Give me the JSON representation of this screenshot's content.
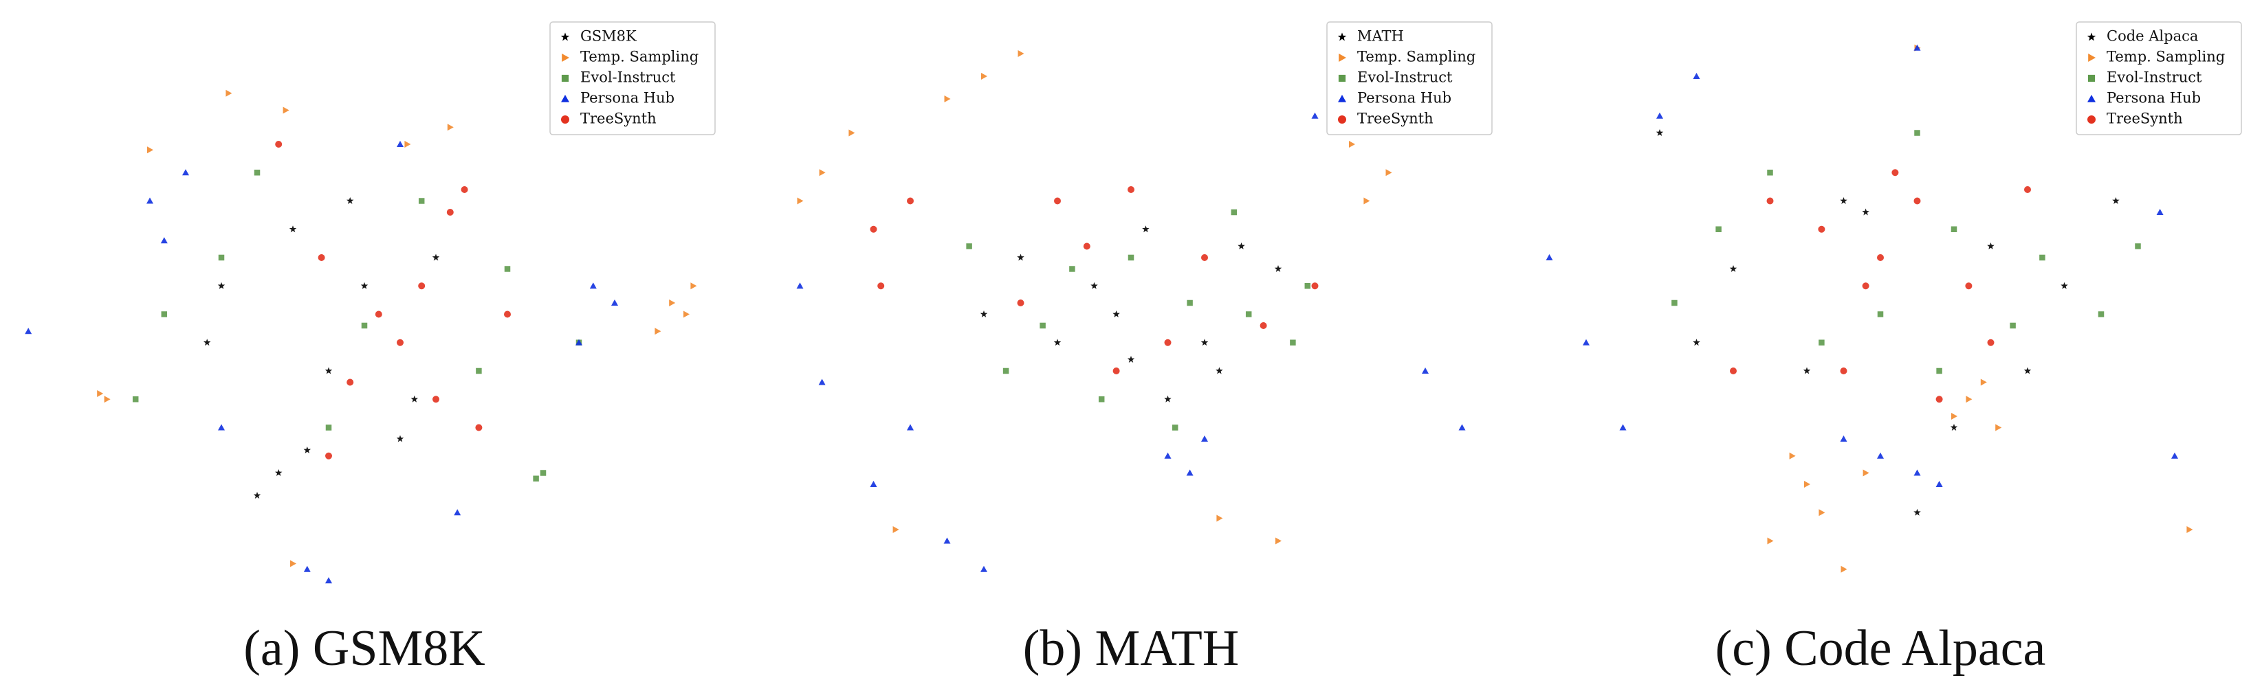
{
  "chart_data": [
    {
      "type": "scatter",
      "title": "(a) GSM8K",
      "xlim": [
        0,
        100
      ],
      "ylim": [
        0,
        100
      ],
      "legend": "upper right",
      "series": [
        {
          "name": "GSM8K",
          "color": "#000000",
          "marker": "star",
          "x": [
            38,
            42,
            45,
            57,
            40,
            50,
            28,
            60,
            35,
            55,
            48,
            30
          ],
          "y": [
            22,
            26,
            40,
            35,
            65,
            55,
            45,
            60,
            18,
            28,
            70,
            55
          ]
        },
        {
          "name": "Temp. Sampling",
          "color": "#f28a2e",
          "marker": "triangle-right",
          "x": [
            93,
            95,
            91,
            96,
            13,
            14,
            39,
            31,
            62,
            40,
            56,
            20
          ],
          "y": [
            52,
            50,
            47,
            55,
            36,
            35,
            86,
            89,
            83,
            6,
            80,
            79
          ]
        },
        {
          "name": "Evol-Instruct",
          "color": "#5e9a4c",
          "marker": "square",
          "x": [
            74,
            75,
            30,
            66,
            50,
            22,
            58,
            70,
            45,
            35,
            80,
            18
          ],
          "y": [
            21,
            22,
            60,
            40,
            48,
            50,
            70,
            58,
            30,
            75,
            45,
            35
          ]
        },
        {
          "name": "Persona Hub",
          "color": "#1030e0",
          "marker": "triangle-up",
          "x": [
            20,
            25,
            22,
            82,
            85,
            80,
            42,
            45,
            55,
            3,
            63,
            30
          ],
          "y": [
            70,
            75,
            63,
            55,
            52,
            45,
            5,
            3,
            80,
            47,
            15,
            30
          ]
        },
        {
          "name": "TreeSynth",
          "color": "#e3321f",
          "marker": "circle",
          "x": [
            52,
            55,
            62,
            64,
            48,
            60,
            45,
            38,
            66,
            70,
            44,
            58
          ],
          "y": [
            50,
            45,
            68,
            72,
            38,
            35,
            25,
            80,
            30,
            50,
            60,
            55
          ]
        }
      ]
    },
    {
      "type": "scatter",
      "title": "(b) MATH",
      "xlim": [
        0,
        100
      ],
      "ylim": [
        0,
        100
      ],
      "legend": "upper right",
      "series": [
        {
          "name": "MATH",
          "color": "#000000",
          "marker": "star",
          "x": [
            45,
            48,
            60,
            62,
            35,
            52,
            70,
            40,
            55,
            65,
            30,
            50
          ],
          "y": [
            55,
            50,
            45,
            40,
            60,
            65,
            58,
            45,
            35,
            62,
            50,
            42
          ]
        },
        {
          "name": "Temp. Sampling",
          "color": "#f28a2e",
          "marker": "triangle-right",
          "x": [
            8,
            12,
            5,
            25,
            30,
            35,
            80,
            85,
            82,
            18,
            62,
            70
          ],
          "y": [
            75,
            82,
            70,
            88,
            92,
            96,
            80,
            75,
            70,
            12,
            14,
            10
          ]
        },
        {
          "name": "Evol-Instruct",
          "color": "#5e9a4c",
          "marker": "square",
          "x": [
            42,
            50,
            58,
            38,
            66,
            72,
            46,
            28,
            56,
            64,
            33,
            74
          ],
          "y": [
            58,
            60,
            52,
            48,
            50,
            45,
            35,
            62,
            30,
            68,
            40,
            55
          ]
        },
        {
          "name": "Persona Hub",
          "color": "#1030e0",
          "marker": "triangle-up",
          "x": [
            5,
            8,
            20,
            25,
            30,
            55,
            58,
            60,
            15,
            75,
            95,
            90
          ],
          "y": [
            55,
            38,
            30,
            10,
            5,
            25,
            22,
            28,
            20,
            85,
            30,
            40
          ]
        },
        {
          "name": "TreeSynth",
          "color": "#e3321f",
          "marker": "circle",
          "x": [
            15,
            20,
            40,
            50,
            44,
            60,
            68,
            75,
            35,
            55,
            16,
            48
          ],
          "y": [
            65,
            70,
            70,
            72,
            62,
            60,
            48,
            55,
            52,
            45,
            55,
            40
          ]
        }
      ]
    },
    {
      "type": "scatter",
      "title": "(c) Code Alpaca",
      "xlim": [
        0,
        100
      ],
      "ylim": [
        0,
        100
      ],
      "legend": "upper right",
      "series": [
        {
          "name": "Code Alpaca",
          "color": "#000000",
          "marker": "star",
          "x": [
            20,
            45,
            48,
            40,
            60,
            65,
            75,
            30,
            82,
            55,
            25,
            70
          ],
          "y": [
            82,
            70,
            68,
            40,
            30,
            62,
            55,
            58,
            70,
            15,
            45,
            40
          ]
        },
        {
          "name": "Temp. Sampling",
          "color": "#f28a2e",
          "marker": "triangle-right",
          "x": [
            40,
            42,
            38,
            35,
            45,
            62,
            64,
            60,
            55,
            92,
            48,
            66
          ],
          "y": [
            20,
            15,
            25,
            10,
            5,
            35,
            38,
            32,
            97,
            12,
            22,
            30
          ]
        },
        {
          "name": "Evol-Instruct",
          "color": "#5e9a4c",
          "marker": "square",
          "x": [
            35,
            55,
            60,
            28,
            72,
            80,
            50,
            42,
            68,
            85,
            22,
            58
          ],
          "y": [
            75,
            82,
            65,
            65,
            60,
            50,
            50,
            45,
            48,
            62,
            52,
            40
          ]
        },
        {
          "name": "Persona Hub",
          "color": "#1030e0",
          "marker": "triangle-up",
          "x": [
            20,
            25,
            5,
            10,
            15,
            50,
            55,
            45,
            58,
            88,
            90,
            55
          ],
          "y": [
            85,
            92,
            60,
            45,
            30,
            25,
            22,
            28,
            20,
            68,
            25,
            97
          ]
        },
        {
          "name": "TreeSynth",
          "color": "#e3321f",
          "marker": "circle",
          "x": [
            52,
            55,
            50,
            48,
            42,
            62,
            65,
            45,
            35,
            70,
            30,
            58
          ],
          "y": [
            75,
            70,
            60,
            55,
            65,
            55,
            45,
            40,
            70,
            72,
            40,
            35
          ]
        }
      ]
    }
  ]
}
